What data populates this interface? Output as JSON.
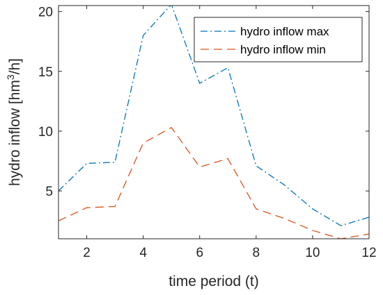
{
  "chart_data": {
    "type": "line",
    "xlabel": "time period (t)",
    "ylabel_main": "hydro inflow [hm",
    "ylabel_sup": "3",
    "ylabel_tail": "/h]",
    "xlim": [
      1,
      12
    ],
    "ylim": [
      1,
      20.5
    ],
    "xticks": [
      2,
      4,
      6,
      8,
      10,
      12
    ],
    "yticks": [
      5,
      10,
      15,
      20
    ],
    "grid": false,
    "legend_position": "top-right",
    "x": [
      1,
      2,
      3,
      4,
      5,
      6,
      7,
      8,
      9,
      10,
      11,
      12
    ],
    "series": [
      {
        "name": "hydro inflow max",
        "values": [
          5.0,
          7.3,
          7.4,
          18.0,
          20.6,
          14.0,
          15.3,
          7.1,
          5.5,
          3.5,
          2.1,
          2.8
        ],
        "color": "#0072BD",
        "dash": "dashdot"
      },
      {
        "name": "hydro inflow min",
        "values": [
          2.5,
          3.6,
          3.7,
          9.0,
          10.3,
          7.0,
          7.7,
          3.5,
          2.7,
          1.7,
          1.0,
          1.4
        ],
        "color": "#D95319",
        "dash": "dashed"
      }
    ]
  }
}
